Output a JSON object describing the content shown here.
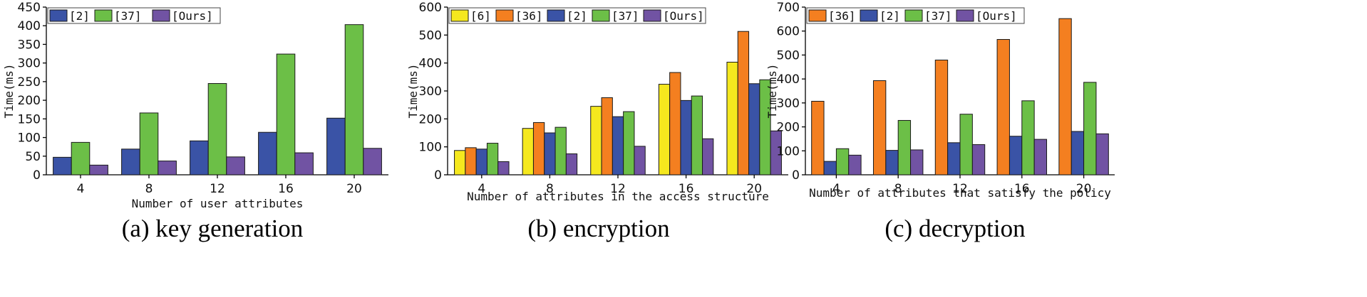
{
  "chart_data": [
    {
      "type": "bar",
      "caption": "(a) key generation",
      "xlabel": "Number of user attributes",
      "ylabel": "Time(ms)",
      "ylim": [
        0,
        450
      ],
      "yticks": [
        0,
        50,
        100,
        150,
        200,
        250,
        300,
        350,
        400,
        450
      ],
      "categories": [
        "4",
        "8",
        "12",
        "16",
        "20"
      ],
      "legend_position": "top-left",
      "series": [
        {
          "name": "[2]",
          "color": "#3a53a6",
          "values": [
            47,
            69,
            91,
            114,
            152
          ]
        },
        {
          "name": "[37]",
          "color": "#6cbf47",
          "values": [
            87,
            166,
            245,
            324,
            403
          ]
        },
        {
          "name": "[Ours]",
          "color": "#7153a3",
          "values": [
            26,
            37,
            48,
            59,
            71
          ]
        }
      ]
    },
    {
      "type": "bar",
      "caption": "(b) encryption",
      "xlabel": "Number of attributes in the access structure",
      "ylabel": "Time(ms)",
      "ylim": [
        0,
        600
      ],
      "yticks": [
        0,
        100,
        200,
        300,
        400,
        500,
        600
      ],
      "categories": [
        "4",
        "8",
        "12",
        "16",
        "20"
      ],
      "legend_position": "top-left",
      "series": [
        {
          "name": "[6]",
          "color": "#f5e81e",
          "values": [
            87,
            166,
            245,
            324,
            403
          ]
        },
        {
          "name": "[36]",
          "color": "#f47f20",
          "values": [
            97,
            187,
            276,
            366,
            513
          ]
        },
        {
          "name": "[2]",
          "color": "#3a53a6",
          "values": [
            92,
            150,
            208,
            266,
            326
          ]
        },
        {
          "name": "[37]",
          "color": "#6cbf47",
          "values": [
            113,
            170,
            226,
            282,
            340
          ]
        },
        {
          "name": "[Ours]",
          "color": "#7153a3",
          "values": [
            47,
            75,
            102,
            129,
            157
          ]
        }
      ]
    },
    {
      "type": "bar",
      "caption": "(c) decryption",
      "xlabel": "Number of attributes that satisfy the policy",
      "ylabel": "Time(ms)",
      "ylim": [
        0,
        700
      ],
      "yticks": [
        0,
        100,
        200,
        300,
        400,
        500,
        600,
        700
      ],
      "categories": [
        "4",
        "8",
        "12",
        "16",
        "20"
      ],
      "legend_position": "top-left",
      "series": [
        {
          "name": "[36]",
          "color": "#f47f20",
          "values": [
            307,
            393,
            479,
            565,
            652
          ]
        },
        {
          "name": "[2]",
          "color": "#3a53a6",
          "values": [
            56,
            102,
            134,
            161,
            181
          ]
        },
        {
          "name": "[37]",
          "color": "#6cbf47",
          "values": [
            109,
            227,
            253,
            309,
            386
          ]
        },
        {
          "name": "[Ours]",
          "color": "#7153a3",
          "values": [
            82,
            104,
            126,
            148,
            171
          ]
        }
      ]
    }
  ]
}
